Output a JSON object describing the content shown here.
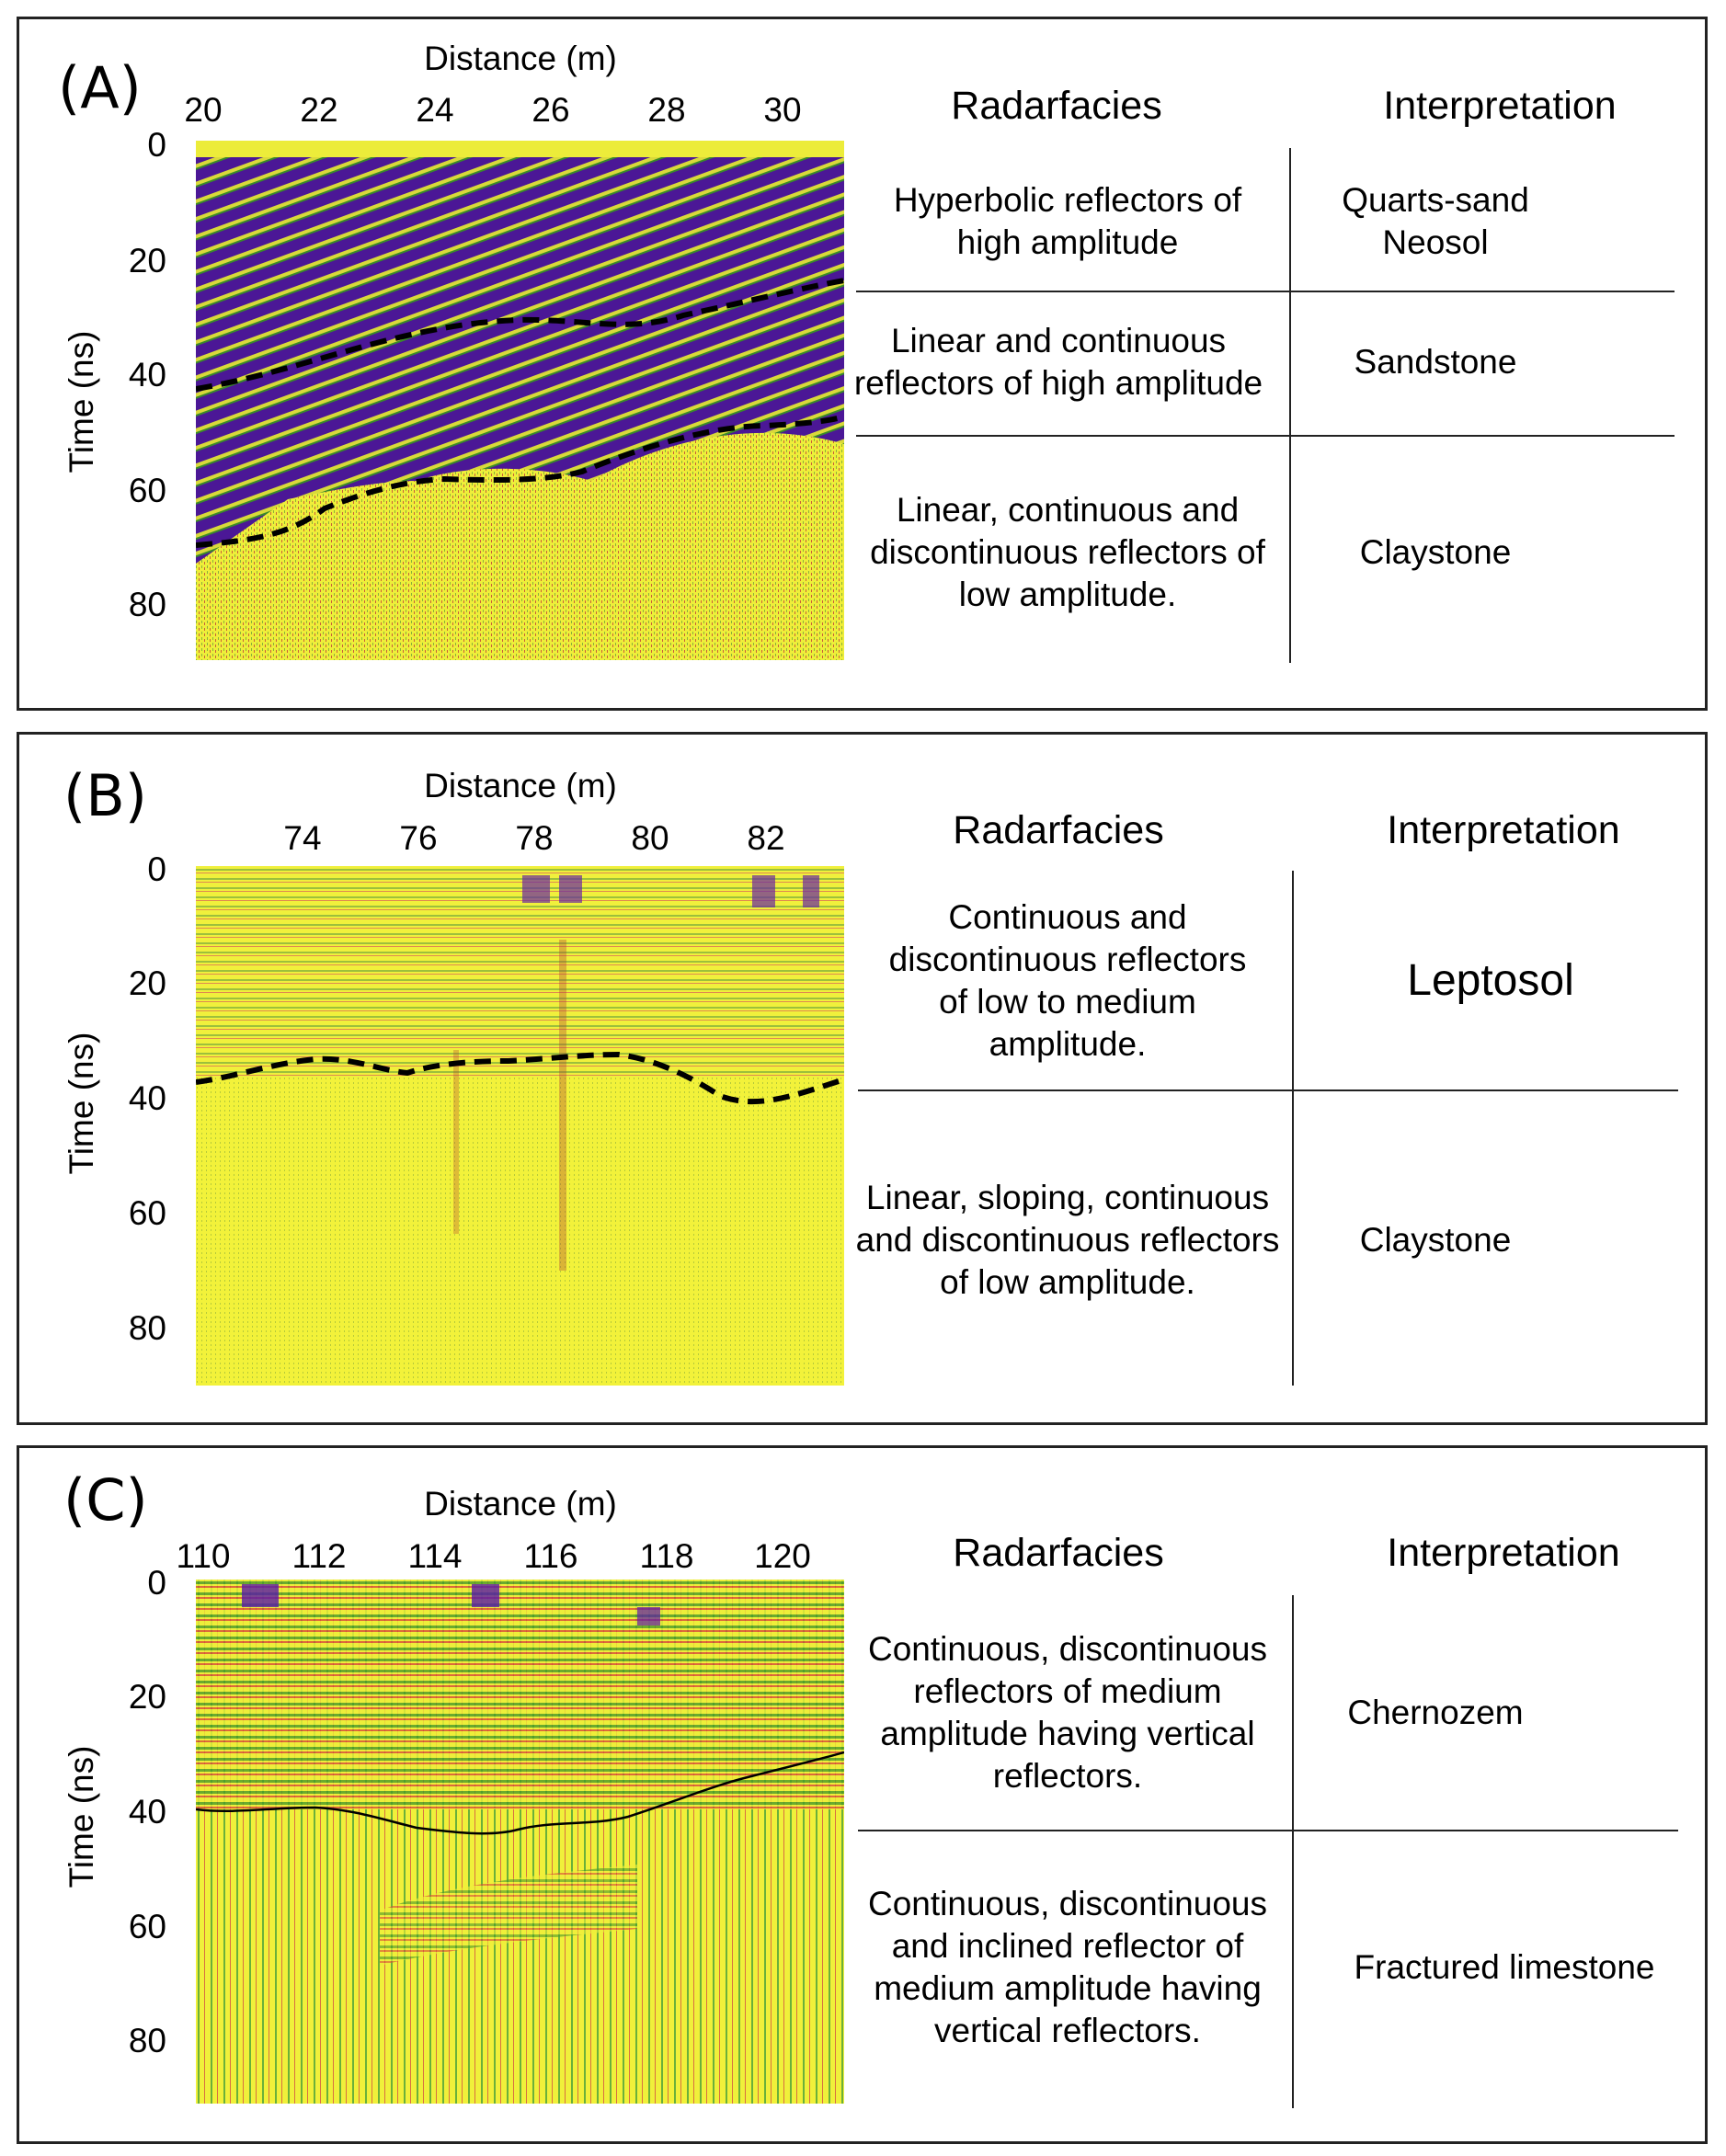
{
  "panels": [
    {
      "letter": "(A)",
      "xlabel": "Distance (m)",
      "ylabel": "Time (ns)",
      "xticks": [
        "20",
        "22",
        "24",
        "26",
        "28",
        "30"
      ],
      "yticks": [
        "0",
        "20",
        "40",
        "60",
        "80"
      ],
      "headers": {
        "left": "Radarfacies",
        "right": "Interpretation"
      },
      "rows": [
        {
          "facies": "Hyperbolic reflectors of high amplitude",
          "interp": "Quarts-sand Neosol"
        },
        {
          "facies": "Linear and continuous reflectors of high amplitude",
          "interp": "Sandstone"
        },
        {
          "facies": "Linear, continuous and discontinuous reflectors of low amplitude.",
          "interp": "Claystone"
        }
      ]
    },
    {
      "letter": "(B)",
      "xlabel": "Distance (m)",
      "ylabel": "Time (ns)",
      "xticks": [
        "74",
        "76",
        "78",
        "80",
        "82"
      ],
      "yticks": [
        "0",
        "20",
        "40",
        "60",
        "80"
      ],
      "headers": {
        "left": "Radarfacies",
        "right": "Interpretation"
      },
      "rows": [
        {
          "facies": "Continuous and discontinuous reflectors of low to medium amplitude.",
          "interp": "Leptosol"
        },
        {
          "facies": "Linear, sloping, continuous and discontinuous reflectors of low amplitude.",
          "interp": "Claystone"
        }
      ]
    },
    {
      "letter": "(C)",
      "xlabel": "Distance (m)",
      "ylabel": "Time (ns)",
      "xticks": [
        "110",
        "112",
        "114",
        "116",
        "118",
        "120"
      ],
      "yticks": [
        "0",
        "20",
        "40",
        "60",
        "80"
      ],
      "headers": {
        "left": "Radarfacies",
        "right": "Interpretation"
      },
      "rows": [
        {
          "facies": "Continuous, discontinuous reflectors of medium amplitude having vertical reflectors.",
          "interp": "Chernozem"
        },
        {
          "facies": "Continuous, discontinuous and inclined reflector of medium amplitude having vertical reflectors.",
          "interp": "Fractured limestone"
        }
      ]
    }
  ],
  "colors": {
    "background_yellow": "#f2f23a",
    "reflector_purple": "#5a1aa8",
    "boundary": "#000000"
  }
}
